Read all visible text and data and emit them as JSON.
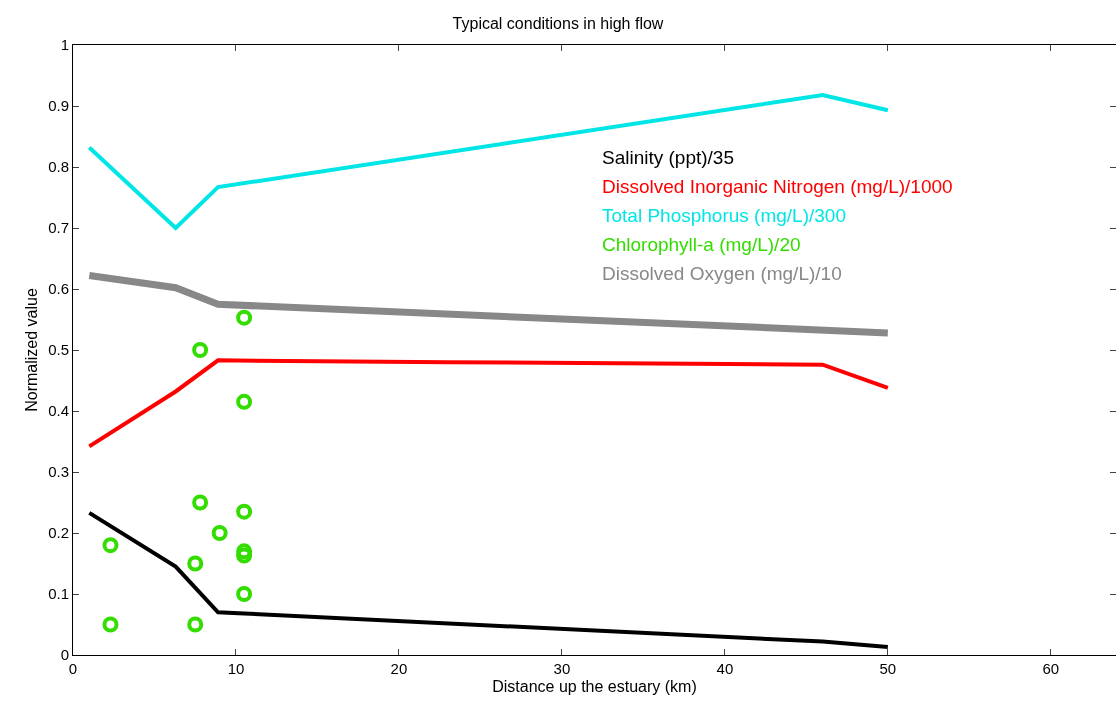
{
  "chart_data": {
    "type": "line",
    "title": "Typical conditions in high flow",
    "xlabel": "Distance up the estuary (km)",
    "ylabel": "Normalized value",
    "xlim": [
      0,
      64
    ],
    "xticks": [
      0,
      10,
      20,
      30,
      40,
      50,
      60
    ],
    "ylim": [
      0,
      1
    ],
    "yticks": [
      0,
      0.1,
      0.2,
      0.3,
      0.4,
      0.5,
      0.6,
      0.7,
      0.8,
      0.9,
      1
    ],
    "legend": "top right",
    "series": [
      {
        "name": "Salinity (ppt)/35",
        "color": "#000000",
        "x": [
          1,
          6.3,
          8.9,
          10.5,
          46,
          50
        ],
        "values": [
          0.233,
          0.145,
          0.07,
          0.068,
          0.022,
          0.013
        ]
      },
      {
        "name": "Dissolved Inorganic Nitrogen (mg/L)/1000",
        "color": "#ff0000",
        "x": [
          1,
          6.3,
          8.9,
          23,
          46,
          50
        ],
        "values": [
          0.342,
          0.432,
          0.483,
          0.48,
          0.476,
          0.438
        ]
      },
      {
        "name": "Total Phosphorus (mg/L)/300",
        "color": "#00e5e5",
        "x": [
          1,
          6.3,
          8.9,
          46,
          50
        ],
        "values": [
          0.832,
          0.7,
          0.767,
          0.918,
          0.893
        ]
      },
      {
        "name": "Chlorophyll-a (mg/L)/20",
        "color": "#33dd00",
        "type": "scatter",
        "marker": "circle",
        "x": [
          2.3,
          2.3,
          7.5,
          7.5,
          7.8,
          7.8,
          9,
          10.5,
          10.5,
          10.5,
          10.5,
          10.5,
          10.5
        ],
        "values": [
          0.18,
          0.05,
          0.15,
          0.05,
          0.25,
          0.5,
          0.2,
          0.553,
          0.415,
          0.235,
          0.17,
          0.163,
          0.1
        ]
      },
      {
        "name": "Dissolved Oxygen (mg/L)/10",
        "color": "#888888",
        "x": [
          1,
          6.3,
          8.9,
          50
        ],
        "values": [
          0.622,
          0.602,
          0.575,
          0.528
        ]
      }
    ]
  }
}
